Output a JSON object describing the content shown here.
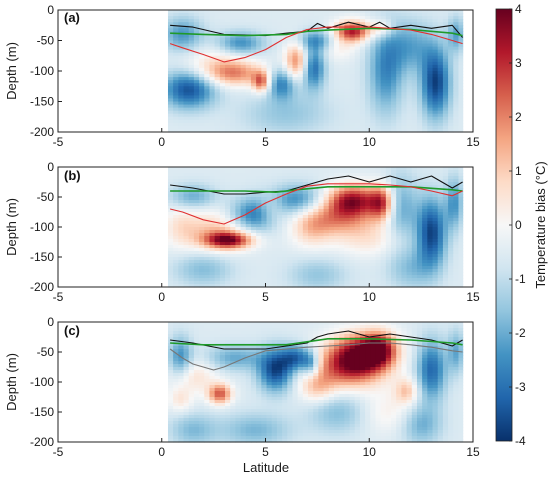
{
  "chart_data": {
    "type": "heatmap",
    "xlabel": "Latitude",
    "ylabel": "Depth (m)",
    "xlim": [
      -5,
      15
    ],
    "ylim": [
      -200,
      0
    ],
    "x_ticks": [
      -5,
      0,
      5,
      10,
      15
    ],
    "y_ticks": [
      0,
      -50,
      -100,
      -150,
      -200
    ],
    "colorbar": {
      "label": "Temperature bias (°C)",
      "range": [
        -4,
        4
      ],
      "ticks": [
        4,
        3,
        2,
        1,
        0,
        -1,
        -2,
        -3,
        -4
      ],
      "colors": [
        "#08306b",
        "#2166ac",
        "#4393c3",
        "#92c5de",
        "#d1e5f0",
        "#f7f7f7",
        "#fddbc7",
        "#f4a582",
        "#d6604d",
        "#b2182b",
        "#67001f"
      ]
    },
    "panels": [
      {
        "label": "(a)",
        "hotspots": [
          {
            "lat": 9.2,
            "depth": -35,
            "bias": 3.8,
            "rx": 0.6,
            "ry": 12
          },
          {
            "lat": 6.5,
            "depth": -85,
            "bias": 2.6,
            "rx": 0.4,
            "ry": 22
          },
          {
            "lat": 3.5,
            "depth": -105,
            "bias": 2.0,
            "rx": 1.0,
            "ry": 14
          },
          {
            "lat": 4.8,
            "depth": -118,
            "bias": 2.8,
            "rx": 0.3,
            "ry": 12
          },
          {
            "lat": 2.7,
            "depth": -90,
            "bias": 1.2,
            "rx": 1.2,
            "ry": 20
          },
          {
            "lat": 10.6,
            "depth": -30,
            "bias": 1.4,
            "rx": 0.4,
            "ry": 10
          },
          {
            "lat": 8.5,
            "depth": -60,
            "bias": 0.9,
            "rx": 0.6,
            "ry": 15
          },
          {
            "lat": 1.3,
            "depth": -130,
            "bias": -3.0,
            "rx": 0.9,
            "ry": 22
          },
          {
            "lat": 13.2,
            "depth": -120,
            "bias": -3.2,
            "rx": 0.5,
            "ry": 40
          },
          {
            "lat": 7.3,
            "depth": -95,
            "bias": -2.6,
            "rx": 0.4,
            "ry": 25
          },
          {
            "lat": 5.8,
            "depth": -120,
            "bias": -2.2,
            "rx": 0.5,
            "ry": 18
          },
          {
            "lat": 3.8,
            "depth": -55,
            "bias": -2.0,
            "rx": 0.8,
            "ry": 14
          },
          {
            "lat": 7.5,
            "depth": -50,
            "bias": -1.8,
            "rx": 0.7,
            "ry": 12
          },
          {
            "lat": 10.8,
            "depth": -100,
            "bias": -2.0,
            "rx": 0.6,
            "ry": 50
          },
          {
            "lat": 12.0,
            "depth": -60,
            "bias": -1.5,
            "rx": 0.8,
            "ry": 30
          },
          {
            "lat": 14.2,
            "depth": -40,
            "bias": -1.6,
            "rx": 0.3,
            "ry": 20
          },
          {
            "lat": 6.0,
            "depth": -170,
            "bias": -1.0,
            "rx": 1.5,
            "ry": 25
          },
          {
            "lat": 1.0,
            "depth": -40,
            "bias": -1.8,
            "rx": 0.7,
            "ry": 20
          }
        ],
        "black_line": {
          "x": [
            0.4,
            1.5,
            3,
            5,
            6,
            7,
            7.5,
            8,
            9,
            10,
            10.5,
            11,
            12,
            13,
            14,
            14.5
          ],
          "y": [
            -25,
            -28,
            -40,
            -42,
            -38,
            -35,
            -22,
            -30,
            -20,
            -28,
            -20,
            -30,
            -25,
            -30,
            -25,
            -45
          ]
        },
        "green_line": {
          "x": [
            0.4,
            2,
            4,
            6,
            7,
            8,
            10,
            12,
            14,
            14.5
          ],
          "y": [
            -38,
            -40,
            -42,
            -40,
            -35,
            -33,
            -30,
            -32,
            -38,
            -42
          ]
        },
        "red_line": {
          "x": [
            0.4,
            1,
            2,
            3,
            4,
            5,
            6,
            7,
            8,
            9,
            10,
            11,
            12,
            13,
            14,
            14.5
          ],
          "y": [
            -55,
            -62,
            -73,
            -85,
            -78,
            -65,
            -45,
            -32,
            -28,
            -28,
            -28,
            -30,
            -33,
            -40,
            -50,
            -55
          ]
        }
      },
      {
        "label": "(b)",
        "hotspots": [
          {
            "lat": 9.2,
            "depth": -55,
            "bias": 3.8,
            "rx": 0.9,
            "ry": 18
          },
          {
            "lat": 10.6,
            "depth": -60,
            "bias": 3.0,
            "rx": 0.4,
            "ry": 20
          },
          {
            "lat": 8.5,
            "depth": -85,
            "bias": 2.2,
            "rx": 1.3,
            "ry": 20
          },
          {
            "lat": 3.2,
            "depth": -122,
            "bias": 3.9,
            "rx": 0.8,
            "ry": 10
          },
          {
            "lat": 2.6,
            "depth": -105,
            "bias": 1.6,
            "rx": 1.1,
            "ry": 25
          },
          {
            "lat": 5.3,
            "depth": -70,
            "bias": 1.3,
            "rx": 0.5,
            "ry": 18
          },
          {
            "lat": 7.2,
            "depth": -105,
            "bias": 1.2,
            "rx": 0.7,
            "ry": 22
          },
          {
            "lat": 10.0,
            "depth": -120,
            "bias": 1.0,
            "rx": 1.2,
            "ry": 20
          },
          {
            "lat": 0.9,
            "depth": -100,
            "bias": 0.9,
            "rx": 0.6,
            "ry": 25
          },
          {
            "lat": 13.0,
            "depth": -110,
            "bias": -3.2,
            "rx": 0.5,
            "ry": 40
          },
          {
            "lat": 4.5,
            "depth": -80,
            "bias": -2.5,
            "rx": 0.9,
            "ry": 20
          },
          {
            "lat": 6.5,
            "depth": -55,
            "bias": -2.0,
            "rx": 1.0,
            "ry": 18
          },
          {
            "lat": 1.5,
            "depth": -50,
            "bias": -1.5,
            "rx": 0.8,
            "ry": 15
          },
          {
            "lat": 11.5,
            "depth": -70,
            "bias": -1.6,
            "rx": 0.6,
            "ry": 40
          },
          {
            "lat": 14.1,
            "depth": -60,
            "bias": -1.8,
            "rx": 0.3,
            "ry": 30
          },
          {
            "lat": 2.0,
            "depth": -170,
            "bias": -1.2,
            "rx": 1.0,
            "ry": 20
          },
          {
            "lat": 7.5,
            "depth": -180,
            "bias": -1.0,
            "rx": 1.0,
            "ry": 20
          },
          {
            "lat": 12.0,
            "depth": -170,
            "bias": -1.1,
            "rx": 0.8,
            "ry": 25
          }
        ],
        "black_line": {
          "x": [
            0.4,
            1.5,
            3,
            4,
            5,
            6,
            7,
            7.5,
            8,
            9,
            10,
            11,
            12,
            13,
            14,
            14.5
          ],
          "y": [
            -30,
            -35,
            -45,
            -45,
            -42,
            -40,
            -30,
            -25,
            -20,
            -15,
            -25,
            -15,
            -25,
            -15,
            -35,
            -25
          ]
        },
        "green_line": {
          "x": [
            0.4,
            2,
            4,
            5.5,
            6.5,
            8,
            10,
            12,
            14,
            14.5
          ],
          "y": [
            -40,
            -40,
            -40,
            -42,
            -38,
            -33,
            -33,
            -33,
            -38,
            -40
          ]
        },
        "red_line": {
          "x": [
            0.4,
            1,
            2,
            3,
            4,
            5,
            6,
            7,
            8,
            9,
            10,
            11,
            12,
            13,
            14,
            14.5
          ],
          "y": [
            -70,
            -75,
            -88,
            -95,
            -80,
            -60,
            -45,
            -32,
            -28,
            -28,
            -28,
            -30,
            -33,
            -40,
            -48,
            -40
          ]
        }
      },
      {
        "label": "(c)",
        "hotspots": [
          {
            "lat": 9.5,
            "depth": -55,
            "bias": 3.9,
            "rx": 1.0,
            "ry": 25
          },
          {
            "lat": 10.5,
            "depth": -45,
            "bias": 3.2,
            "rx": 0.6,
            "ry": 20
          },
          {
            "lat": 8.8,
            "depth": -80,
            "bias": 2.2,
            "rx": 1.3,
            "ry": 25
          },
          {
            "lat": 2.8,
            "depth": -120,
            "bias": 3.0,
            "rx": 0.4,
            "ry": 12
          },
          {
            "lat": 1.5,
            "depth": -90,
            "bias": 1.2,
            "rx": 0.8,
            "ry": 20
          },
          {
            "lat": 0.9,
            "depth": -130,
            "bias": 1.0,
            "rx": 0.4,
            "ry": 15
          },
          {
            "lat": 7.5,
            "depth": -110,
            "bias": 1.4,
            "rx": 0.6,
            "ry": 18
          },
          {
            "lat": 11.8,
            "depth": -115,
            "bias": 1.6,
            "rx": 0.4,
            "ry": 15
          },
          {
            "lat": 11.0,
            "depth": -150,
            "bias": 0.8,
            "rx": 1.0,
            "ry": 25
          },
          {
            "lat": 5.5,
            "depth": -80,
            "bias": -3.2,
            "rx": 0.6,
            "ry": 25
          },
          {
            "lat": 6.5,
            "depth": -60,
            "bias": -2.5,
            "rx": 0.5,
            "ry": 15
          },
          {
            "lat": 13.0,
            "depth": -80,
            "bias": -2.6,
            "rx": 0.5,
            "ry": 35
          },
          {
            "lat": 7.2,
            "depth": -70,
            "bias": -2.0,
            "rx": 0.3,
            "ry": 15
          },
          {
            "lat": 0.9,
            "depth": -60,
            "bias": -2.0,
            "rx": 0.4,
            "ry": 25
          },
          {
            "lat": 3.5,
            "depth": -60,
            "bias": -1.5,
            "rx": 1.0,
            "ry": 15
          },
          {
            "lat": 4.5,
            "depth": -180,
            "bias": -1.3,
            "rx": 1.2,
            "ry": 20
          },
          {
            "lat": 8.5,
            "depth": -150,
            "bias": -1.2,
            "rx": 1.0,
            "ry": 25
          },
          {
            "lat": 12.5,
            "depth": -170,
            "bias": -1.5,
            "rx": 0.7,
            "ry": 25
          },
          {
            "lat": 14.2,
            "depth": -50,
            "bias": -1.5,
            "rx": 0.3,
            "ry": 25
          },
          {
            "lat": 1.5,
            "depth": -180,
            "bias": -1.2,
            "rx": 0.8,
            "ry": 20
          }
        ],
        "black_line": {
          "x": [
            0.4,
            1.5,
            3,
            5,
            6,
            7,
            7.5,
            8,
            9,
            10,
            11,
            12,
            13,
            14,
            14.5
          ],
          "y": [
            -30,
            -35,
            -45,
            -45,
            -40,
            -35,
            -25,
            -20,
            -15,
            -25,
            -20,
            -25,
            -30,
            -40,
            -30
          ]
        },
        "green_line": {
          "x": [
            0.4,
            2,
            4,
            6,
            7,
            8,
            10,
            12,
            14,
            14.5
          ],
          "y": [
            -35,
            -38,
            -38,
            -38,
            -33,
            -28,
            -28,
            -30,
            -35,
            -38
          ]
        },
        "grey_line": {
          "x": [
            0.4,
            1,
            1.5,
            2.5,
            3,
            4,
            5,
            6,
            7,
            8,
            9,
            10,
            11,
            12,
            13,
            14,
            14.5
          ],
          "y": [
            -45,
            -60,
            -70,
            -80,
            -75,
            -60,
            -48,
            -45,
            -42,
            -40,
            -38,
            -35,
            -35,
            -38,
            -42,
            -48,
            -50
          ]
        }
      }
    ]
  }
}
